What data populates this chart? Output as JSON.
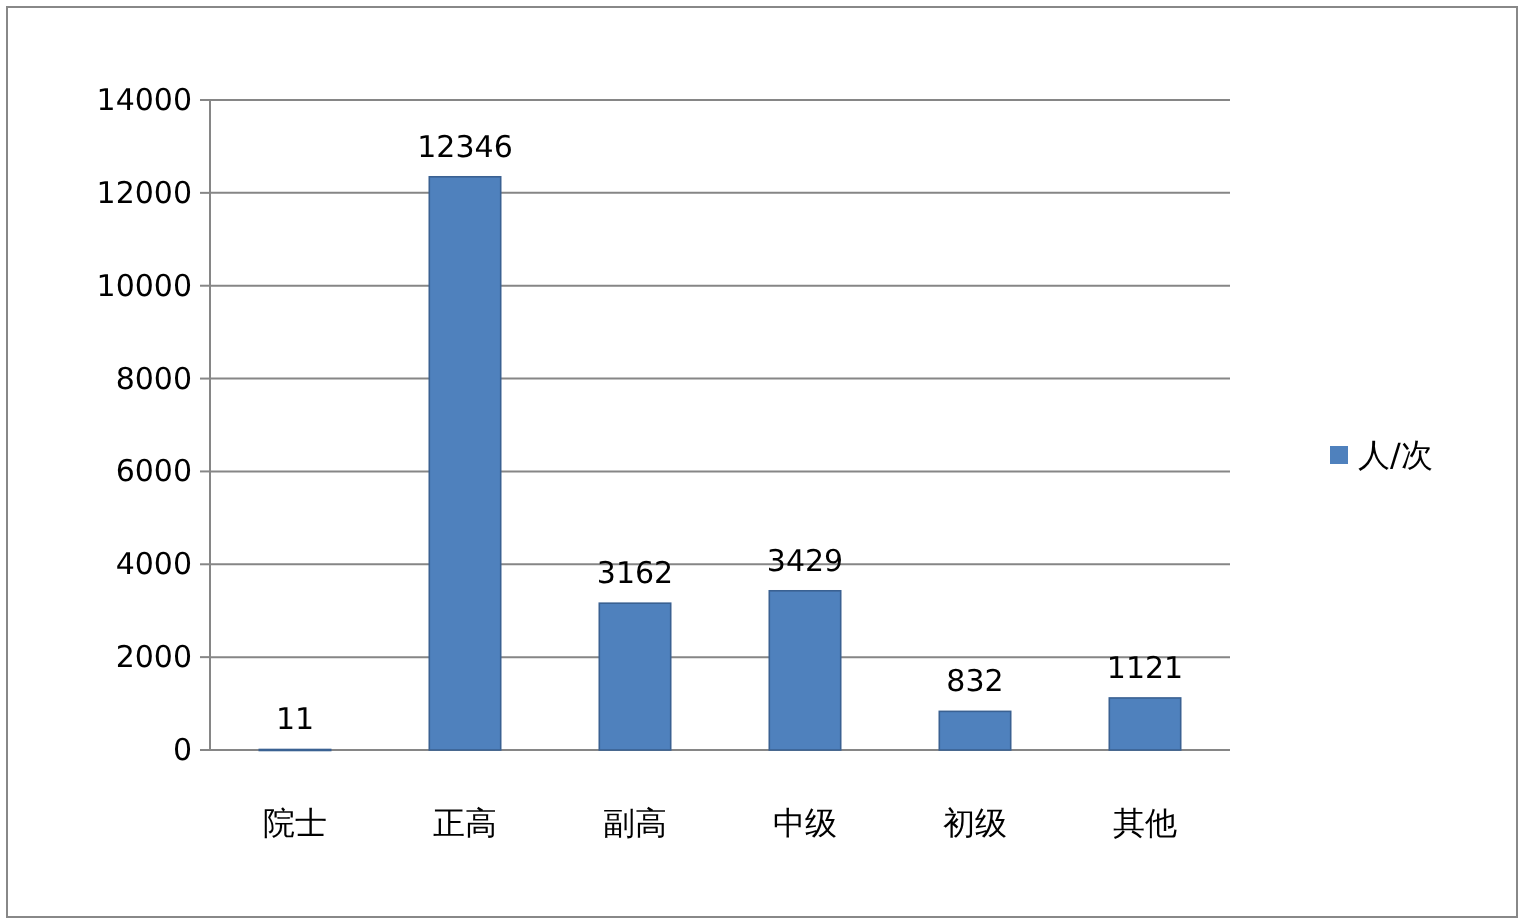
{
  "chart_data": {
    "type": "bar",
    "categories": [
      "院士",
      "正高",
      "副高",
      "中级",
      "初级",
      "其他"
    ],
    "series": [
      {
        "name": "人/次",
        "color": "#4f81bd",
        "values": [
          11,
          12346,
          3162,
          3429,
          832,
          1121
        ]
      }
    ],
    "ylim": [
      0,
      14000
    ],
    "yticks": [
      0,
      2000,
      4000,
      6000,
      8000,
      10000,
      12000,
      14000
    ],
    "grid": "y",
    "legend": "right",
    "data_labels": true
  }
}
